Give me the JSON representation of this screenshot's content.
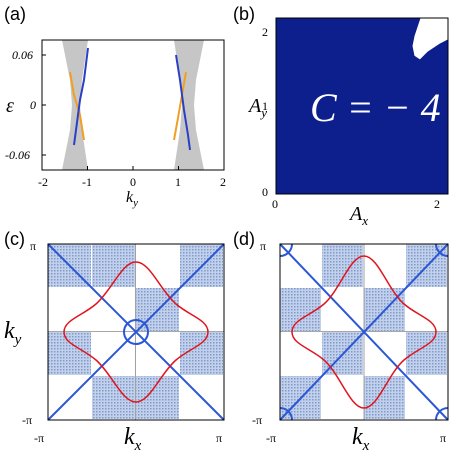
{
  "panels": {
    "a": {
      "label": "(a)",
      "xlabel": "k",
      "xlabel_sub": "y",
      "ylabel": "ε",
      "xticks": [
        "-2",
        "-1",
        "0",
        "1",
        "2"
      ],
      "yticks": [
        "0.06",
        "0",
        "-0.06"
      ]
    },
    "b": {
      "label": "(b)",
      "xlabel": "A",
      "xlabel_sub": "x",
      "ylabel": "A",
      "ylabel_sub": "y",
      "xticks": [
        "0",
        "2"
      ],
      "yticks": [
        "2",
        "1",
        "0"
      ],
      "annotation": "C = − 4",
      "fill_color": "#0d1f8c"
    },
    "c": {
      "label": "(c)",
      "xlabel": "k",
      "xlabel_sub": "x",
      "ylabel": "k",
      "ylabel_sub": "y",
      "xticks": [
        "-π",
        "π"
      ],
      "yticks": [
        "π",
        "-π"
      ]
    },
    "d": {
      "label": "(d)",
      "xlabel": "k",
      "xlabel_sub": "x",
      "xticks": [
        "-π",
        "π"
      ],
      "yticks": [
        "π",
        "-π"
      ]
    }
  },
  "colors": {
    "band_gray": "#c6c6c6",
    "edge_blue": "#2a3fc4",
    "edge_orange": "#f0a020",
    "checker_blue": "#9db3d9",
    "diag_blue": "#2b57d6",
    "fermi_red": "#e0141e"
  }
}
